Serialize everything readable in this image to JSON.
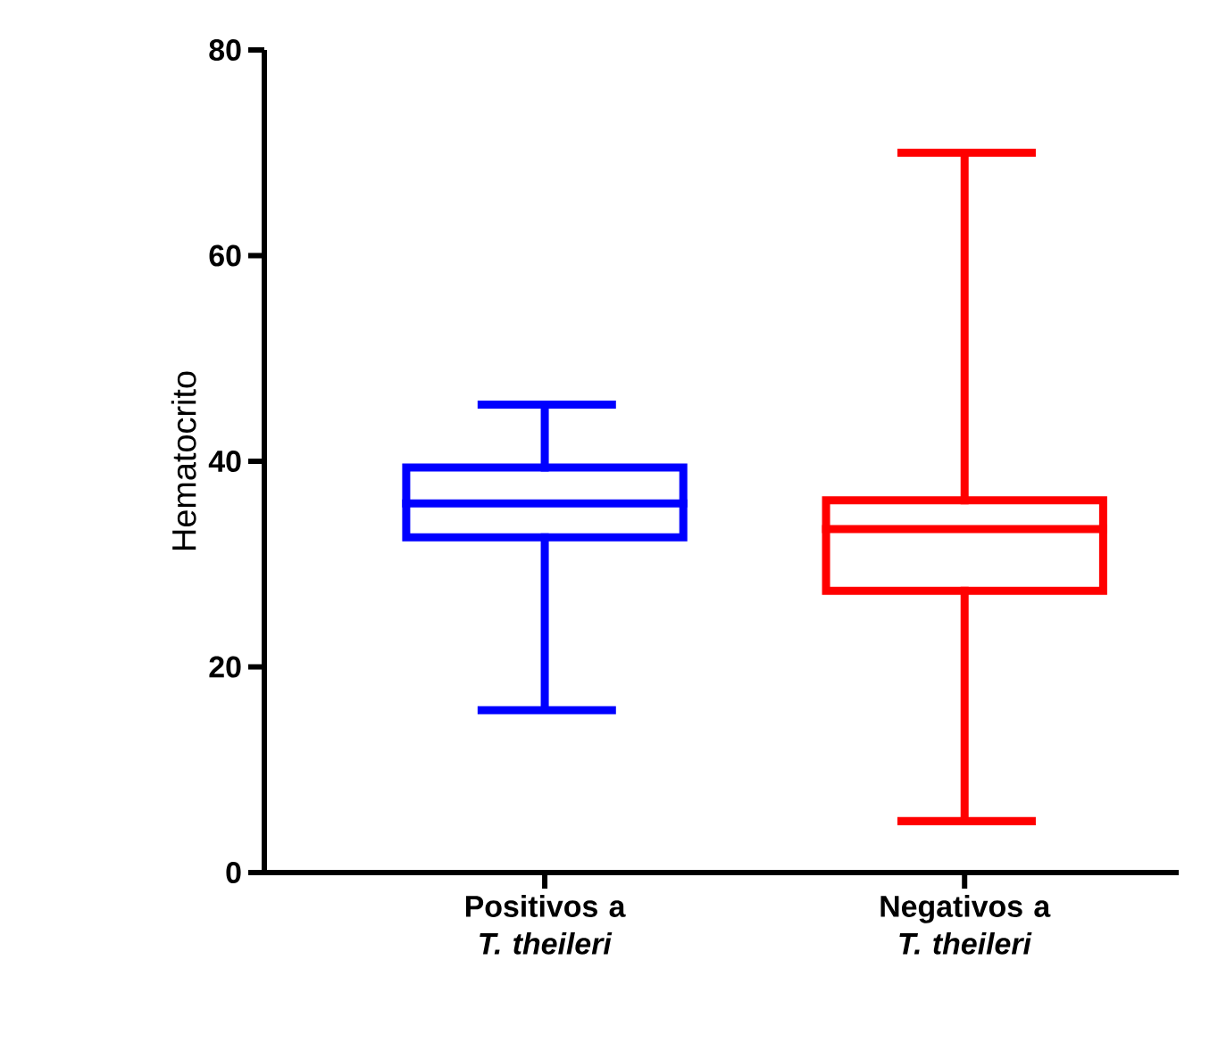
{
  "chart_data": {
    "type": "box",
    "ylabel": "Hematocrito",
    "categories": [
      "Positivos a *T. theileri*",
      "Negativos a *T. theileri*"
    ],
    "colors": [
      "#0000ff",
      "#ff0000"
    ],
    "boxes": [
      {
        "low": 15.8,
        "q1": 32.6,
        "median": 35.9,
        "q3": 39.4,
        "high": 45.5
      },
      {
        "low": 5.0,
        "q1": 27.4,
        "median": 33.4,
        "q3": 36.2,
        "high": 70.0
      }
    ],
    "ylim": [
      0,
      80
    ],
    "yticks": [
      0,
      20,
      40,
      60,
      80
    ],
    "grid": false
  }
}
